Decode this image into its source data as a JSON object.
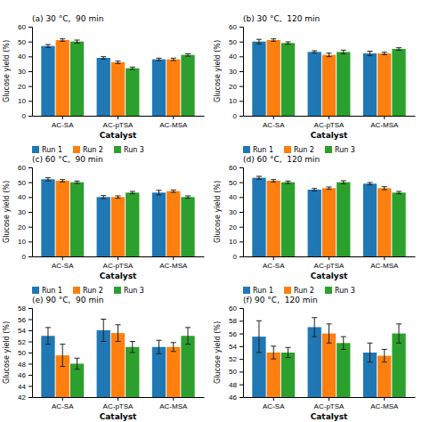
{
  "chart_data": [
    {
      "type": "bar",
      "title": "(a) 30 °C,  90 min",
      "xlabel": "Catalyst",
      "ylabel": "Glucose yield (%)",
      "categories": [
        "AC-SA",
        "AC-pTSA",
        "AC-MSA"
      ],
      "series": [
        {
          "name": "Run 1",
          "values": [
            47,
            39,
            38
          ],
          "errors": [
            1.0,
            0.8,
            0.8
          ]
        },
        {
          "name": "Run 2",
          "values": [
            51,
            36,
            38
          ],
          "errors": [
            0.8,
            0.8,
            0.8
          ]
        },
        {
          "name": "Run 3",
          "values": [
            50,
            32,
            41
          ],
          "errors": [
            1.0,
            0.8,
            0.8
          ]
        }
      ],
      "ylim": [
        0,
        60
      ],
      "yticks": [
        0,
        10,
        20,
        30,
        40,
        50,
        60
      ],
      "grid": false,
      "legend": false
    },
    {
      "type": "bar",
      "title": "(b) 30 °C,  120 min",
      "xlabel": "Catalyst",
      "ylabel": "Glucose yield (%)",
      "categories": [
        "AC-SA",
        "AC-pTSA",
        "AC-MSA"
      ],
      "series": [
        {
          "name": "Run 1",
          "values": [
            50,
            43,
            42
          ],
          "errors": [
            1.5,
            0.8,
            1.5
          ]
        },
        {
          "name": "Run 2",
          "values": [
            51,
            41,
            42
          ],
          "errors": [
            0.8,
            1.2,
            0.8
          ]
        },
        {
          "name": "Run 3",
          "values": [
            49,
            43,
            45
          ],
          "errors": [
            0.8,
            1.2,
            0.8
          ]
        }
      ],
      "ylim": [
        0,
        60
      ],
      "yticks": [
        0,
        10,
        20,
        30,
        40,
        50,
        60
      ],
      "grid": false,
      "legend": false
    },
    {
      "type": "bar",
      "title": "(c) 60 °C,  90 min",
      "xlabel": "Catalyst",
      "ylabel": "Glucose yield (%)",
      "categories": [
        "AC-SA",
        "AC-pTSA",
        "AC-MSA"
      ],
      "series": [
        {
          "name": "Run 1",
          "values": [
            52,
            40,
            43
          ],
          "errors": [
            1.0,
            1.0,
            1.5
          ]
        },
        {
          "name": "Run 2",
          "values": [
            51,
            40,
            44
          ],
          "errors": [
            0.8,
            0.8,
            0.8
          ]
        },
        {
          "name": "Run 3",
          "values": [
            50,
            43,
            40
          ],
          "errors": [
            0.8,
            0.8,
            0.8
          ]
        }
      ],
      "ylim": [
        0,
        60
      ],
      "yticks": [
        0,
        10,
        20,
        30,
        40,
        50,
        60
      ],
      "grid": false,
      "legend": "top"
    },
    {
      "type": "bar",
      "title": "(d) 60 °C,  120 min",
      "xlabel": "Catalyst",
      "ylabel": "Glucose yield (%)",
      "categories": [
        "AC-SA",
        "AC-pTSA",
        "AC-MSA"
      ],
      "series": [
        {
          "name": "Run 1",
          "values": [
            53,
            45,
            49
          ],
          "errors": [
            1.0,
            0.8,
            0.8
          ]
        },
        {
          "name": "Run 2",
          "values": [
            51,
            46,
            46
          ],
          "errors": [
            0.8,
            0.8,
            1.0
          ]
        },
        {
          "name": "Run 3",
          "values": [
            50,
            50,
            43
          ],
          "errors": [
            0.8,
            1.0,
            0.8
          ]
        }
      ],
      "ylim": [
        0,
        60
      ],
      "yticks": [
        0,
        10,
        20,
        30,
        40,
        50,
        60
      ],
      "grid": false,
      "legend": "top"
    },
    {
      "type": "bar",
      "title": "(e) 90 °C,  90 min",
      "xlabel": "Catalyst",
      "ylabel": "Glucose yield (%)",
      "categories": [
        "AC-SA",
        "AC-pTSA",
        "AC-MSA"
      ],
      "series": [
        {
          "name": "Run 1",
          "values": [
            53,
            54,
            51
          ],
          "errors": [
            1.5,
            2.0,
            1.2
          ]
        },
        {
          "name": "Run 2",
          "values": [
            49.5,
            53.5,
            51
          ],
          "errors": [
            2.0,
            1.5,
            0.8
          ]
        },
        {
          "name": "Run 3",
          "values": [
            48,
            51,
            53
          ],
          "errors": [
            1.0,
            1.0,
            1.5
          ]
        }
      ],
      "ylim": [
        42,
        58
      ],
      "yticks": [
        42,
        44,
        46,
        48,
        50,
        52,
        54,
        56,
        58
      ],
      "grid": false,
      "legend": "top"
    },
    {
      "type": "bar",
      "title": "(f) 90 °C,  120 min",
      "xlabel": "Catalyst",
      "ylabel": "Glucose yield (%)",
      "categories": [
        "AC-SA",
        "AC-pTSA",
        "AC-MSA"
      ],
      "series": [
        {
          "name": "Run 1",
          "values": [
            55.5,
            57,
            53
          ],
          "errors": [
            2.5,
            1.5,
            1.5
          ]
        },
        {
          "name": "Run 2",
          "values": [
            53,
            56,
            52.5
          ],
          "errors": [
            1.0,
            1.5,
            1.0
          ]
        },
        {
          "name": "Run 3",
          "values": [
            53,
            54.5,
            56
          ],
          "errors": [
            0.8,
            1.0,
            1.5
          ]
        }
      ],
      "ylim": [
        46,
        60
      ],
      "yticks": [
        46,
        48,
        50,
        52,
        54,
        56,
        58,
        60
      ],
      "grid": false,
      "legend": "top"
    }
  ]
}
